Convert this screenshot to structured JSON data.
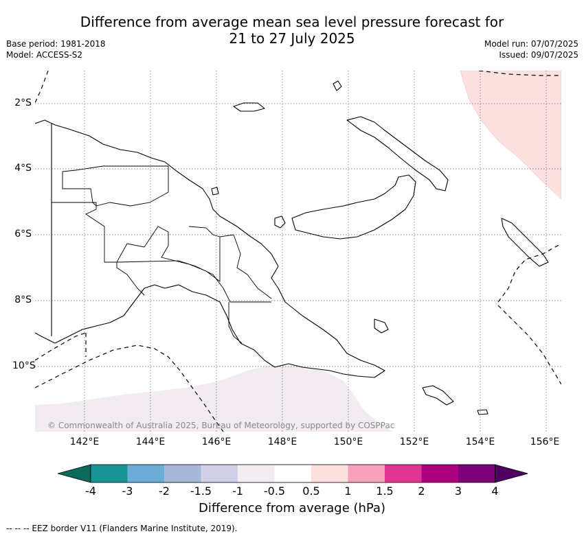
{
  "title": {
    "line1": "Difference from average mean sea level pressure forecast for",
    "line2": "21 to 27 July 2025"
  },
  "meta": {
    "base_period": "Base period: 1981-2018",
    "model": "Model: ACCESS-S2",
    "model_run": "Model run: 07/07/2025",
    "issued": "Issued: 09/07/2025"
  },
  "map": {
    "land_outline_color": "#000000",
    "gridline_color": "#555555",
    "gridlines": "dotted",
    "eez_border_style": "dashed",
    "longitude_ticks": [
      "142°E",
      "144°E",
      "146°E",
      "148°E",
      "150°E",
      "152°E",
      "154°E",
      "156°E"
    ],
    "latitude_ticks": [
      "2°S",
      "4°S",
      "6°S",
      "8°S",
      "10°S"
    ],
    "anomaly_regions": [
      {
        "location": "north-east",
        "category": "0.5 to 1",
        "color": "#fde0e0"
      },
      {
        "location": "south",
        "category": "-1 to -0.5",
        "color": "#f2ecf2"
      }
    ],
    "copyright": "© Commonwealth of Australia 2025, Bureau of Meteorology, supported by COSPPac"
  },
  "colorbar": {
    "label": "Difference from average (hPa)",
    "ticks": [
      "-4",
      "-3",
      "-2",
      "-1.5",
      "-1",
      "-0.5",
      "0.5",
      "1",
      "1.5",
      "2",
      "3",
      "4"
    ],
    "colors": [
      "#0b6b5b",
      "#1b9498",
      "#6badd6",
      "#a7b9d8",
      "#cfd0e6",
      "#f2ecf2",
      "#ffffff",
      "#fde0e0",
      "#f8a1ba",
      "#e03592",
      "#ad007f",
      "#7a0177",
      "#4d0060"
    ],
    "extend": "both"
  },
  "eez_note": "--  --  -- EEZ border V11 (Flanders Marine Institute, 2019)."
}
